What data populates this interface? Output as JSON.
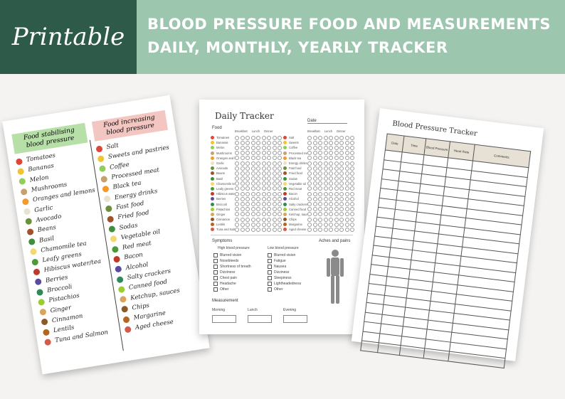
{
  "header": {
    "printable": "Printable",
    "title_line1": "BLOOD PRESSURE FOOD AND MEASUREMENTS",
    "title_line2": "DAILY, MONTHLY, YEARLY TRACKER",
    "colors": {
      "left": "#2e5a4a",
      "right": "#9cc6ae"
    }
  },
  "food_list": {
    "left_heading": "Food stabilising blood pressure",
    "right_heading": "Food increasing blood pressure",
    "left_items": [
      "Tomatoes",
      "Bananas",
      "Melon",
      "Mushrooms",
      "Oranges and lemons",
      "Garlic",
      "Avocado",
      "Beans",
      "Basil",
      "Chamomile tea",
      "Leafy greens",
      "Hibiscus water/tea",
      "Berries",
      "Broccoli",
      "Pistachios",
      "Ginger",
      "Cinnamon",
      "Lentils",
      "Tuna and Salmon"
    ],
    "right_items": [
      "Salt",
      "Sweets and pastries",
      "Coffee",
      "Processed meat",
      "Black tea",
      "Energy drinks",
      "Fast food",
      "Fried food",
      "Sodas",
      "Vegetable oil",
      "Red meat",
      "Bacon",
      "Alcohol",
      "Salty crackers",
      "Canned food",
      "Ketchup, sauces",
      "Chips",
      "Margarine",
      "Aged cheese"
    ]
  },
  "daily": {
    "title": "Daily Tracker",
    "date_label": "Date",
    "food_label": "Food",
    "col_heads": [
      "Breakfast",
      "Lunch",
      "Dinner"
    ],
    "left_foods": [
      "Tomatoes",
      "Bananas",
      "Melon",
      "Mushrooms",
      "Oranges and lemons",
      "Garlic",
      "Avocado",
      "Beans",
      "Basil",
      "Chamomile tea",
      "Leafy greens",
      "Hibiscus water/tea",
      "Berries",
      "Broccoli",
      "Pistachios",
      "Ginger",
      "Cinnamon",
      "Lentils",
      "Tuna and Salmon"
    ],
    "right_foods": [
      "Salt",
      "Sweets",
      "Coffee",
      "Processed meat",
      "Black tea",
      "Energy drinks",
      "Fast food",
      "Fried food",
      "Sodas",
      "Vegetable oil",
      "Red meat",
      "Bacon",
      "Alcohol",
      "Salty crackers",
      "Canned food",
      "Ketchup, sauces",
      "Chips",
      "Margarine",
      "Aged cheese"
    ],
    "symptoms_label": "Symptoms",
    "high_label": "High blood pressure",
    "low_label": "Low blood pressure",
    "high_items": [
      "Blurred vision",
      "Nosebleeds",
      "Shortness of breath",
      "Dizziness",
      "Chest pain",
      "Headache",
      "Other"
    ],
    "low_items": [
      "Blurred vision",
      "Fatigue",
      "Nausea",
      "Dizziness",
      "Sleepiness",
      "Lightheadedness",
      "Other"
    ],
    "aches_label": "Aches and pains",
    "measurement_label": "Measurement",
    "times": [
      "Morning",
      "Lunch",
      "Evening"
    ]
  },
  "bp": {
    "title": "Blood Pressure Tracker",
    "columns": [
      "Date",
      "Time",
      "Blood Pressure",
      "Heart Rate",
      "Comments"
    ],
    "row_count": 21
  }
}
